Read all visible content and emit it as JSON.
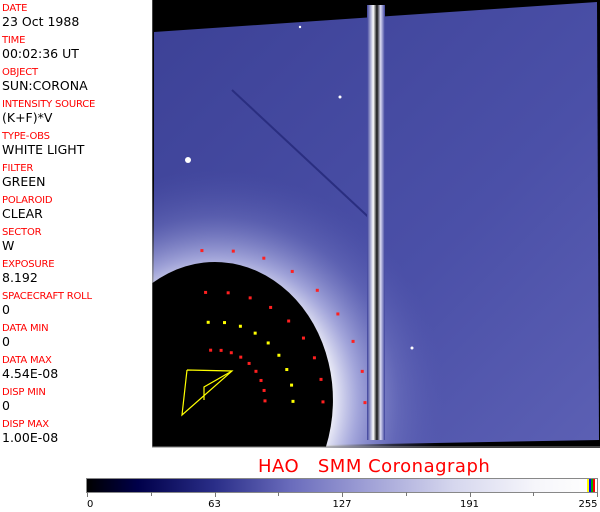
{
  "header_fields": [
    {
      "label": "DATE",
      "value": "23 Oct 1988"
    },
    {
      "label": "TIME",
      "value": "00:02:36 UT"
    },
    {
      "label": "OBJECT",
      "value": "SUN:CORONA"
    },
    {
      "label": "INTENSITY SOURCE",
      "value": "(K+F)*V"
    },
    {
      "label": "TYPE-OBS",
      "value": "WHITE LIGHT"
    },
    {
      "label": "FILTER",
      "value": "GREEN"
    },
    {
      "label": "POLAROID",
      "value": "CLEAR"
    },
    {
      "label": "SECTOR",
      "value": "W"
    },
    {
      "label": "EXPOSURE",
      "value": "8.192"
    },
    {
      "label": "SPACECRAFT ROLL",
      "value": "0"
    },
    {
      "label": "DATA MIN",
      "value": "0"
    },
    {
      "label": "DATA MAX",
      "value": "4.54E-08"
    },
    {
      "label": "DISP MIN",
      "value": "0"
    },
    {
      "label": "DISP MAX",
      "value": "1.00E-08"
    }
  ],
  "title": "HAO   SMM Coronagraph",
  "colorbar": {
    "tick_labels": [
      "0",
      "63",
      "127",
      "191",
      "255"
    ],
    "range": [
      0,
      255
    ],
    "end_markers": [
      "#ffff00",
      "#0000ff",
      "#00aa00",
      "#ff0000"
    ]
  },
  "colors": {
    "label": "#ff0000",
    "image_blue": "#3a3f9a",
    "occulter": "#000000"
  }
}
